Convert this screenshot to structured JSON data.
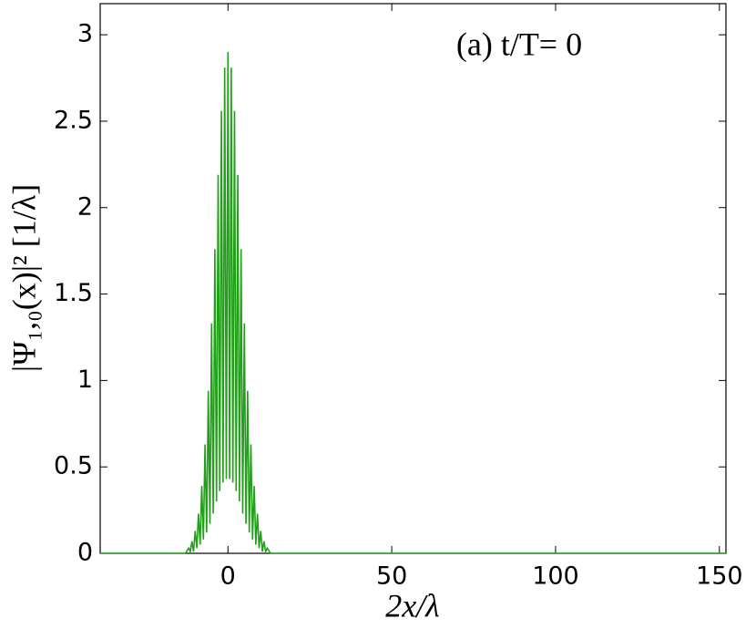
{
  "chart_data": {
    "type": "line",
    "annotation": "(a) t/T= 0",
    "x_label": "2x/λ",
    "y_label": "|Ψ₁,₀(x)|² [1/λ]",
    "x": [
      -39,
      -13,
      -12,
      -11.5,
      -11,
      -10.5,
      -10,
      -9.5,
      -9,
      -8.5,
      -8,
      -7.5,
      -7,
      -6.5,
      -6,
      -5.5,
      -5,
      -4.5,
      -4,
      -3.5,
      -3,
      -2.5,
      -2,
      -1.5,
      -1,
      -0.5,
      0,
      0.5,
      1,
      1.5,
      2,
      2.5,
      3,
      3.5,
      4,
      4.5,
      5,
      5.5,
      6,
      6.5,
      7,
      7.5,
      8,
      8.5,
      9,
      9.5,
      10,
      10.5,
      11,
      11.5,
      12,
      13,
      152
    ],
    "series": [
      {
        "color": "#22a01a",
        "values": [
          0,
          0,
          0.03,
          0.01,
          0.07,
          0.01,
          0.13,
          0.03,
          0.23,
          0.05,
          0.39,
          0.08,
          0.63,
          0.12,
          0.94,
          0.17,
          1.33,
          0.23,
          1.76,
          0.3,
          2.19,
          0.36,
          2.56,
          0.41,
          2.81,
          0.43,
          2.9,
          0.43,
          2.81,
          0.41,
          2.56,
          0.36,
          2.19,
          0.3,
          1.76,
          0.23,
          1.33,
          0.17,
          0.94,
          0.12,
          0.63,
          0.08,
          0.39,
          0.05,
          0.23,
          0.03,
          0.13,
          0.01,
          0.07,
          0.01,
          0.03,
          0,
          0
        ]
      }
    ],
    "xlim": [
      -39,
      152
    ],
    "ylim": [
      0,
      3.18
    ],
    "xticks": [
      0,
      50,
      100,
      150
    ],
    "yticks": [
      0,
      0.5,
      1,
      1.5,
      2,
      2.5,
      3
    ]
  }
}
